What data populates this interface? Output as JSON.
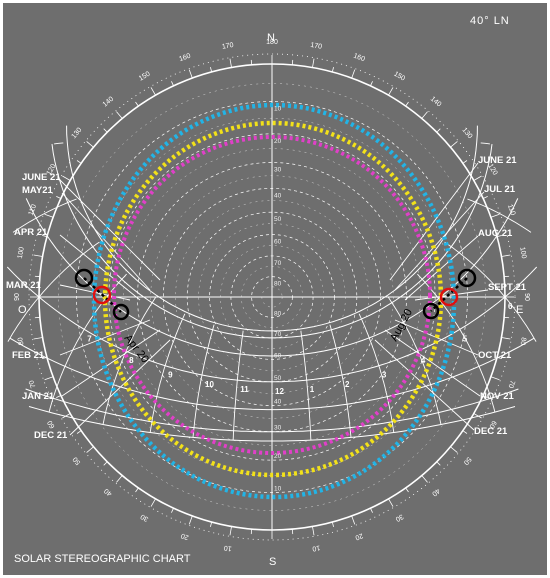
{
  "latitude_label": "40° LN",
  "title": "SOLAR STEREOGRAPHIC CHART",
  "cardinals": {
    "north": "N",
    "south": "S",
    "east": "E",
    "west": "O"
  },
  "months_left": [
    "JUNE 21",
    "MAY21",
    "APR 21",
    "MAR 21",
    "FEB 21",
    "JAN 21",
    "DEC 21"
  ],
  "months_right": [
    "JUNE 21",
    "JUL 21",
    "AUG 21",
    "SEPT 21",
    "OCT 21",
    "NOV 21",
    "DEC 21"
  ],
  "azimuth_labels": [
    "10",
    "20",
    "30",
    "40",
    "50",
    "60",
    "70",
    "80",
    "90",
    "100",
    "110",
    "120",
    "130",
    "140",
    "150",
    "160",
    "170",
    "180",
    "170",
    "160",
    "150",
    "140",
    "130",
    "120",
    "110",
    "100",
    "90",
    "80",
    "70",
    "60",
    "50",
    "40",
    "30",
    "20",
    "10"
  ],
  "altitude_labels": [
    "10",
    "20",
    "30",
    "40",
    "50",
    "60",
    "70",
    "80"
  ],
  "hour_labels": [
    "6",
    "5",
    "4",
    "3",
    "2",
    "1",
    "12",
    "11",
    "10",
    "9",
    "8",
    "7"
  ],
  "markers": {
    "left_date": "Apr 20",
    "right_date": "Aug 20"
  },
  "colors": {
    "background": "#6e6e6e",
    "lines": "#ffffff",
    "cyan_ring": "#22b4e6",
    "yellow_ring": "#f2e11a",
    "magenta_ring": "#e040c8",
    "red_marker": "#e01010",
    "black_marker": "#000000"
  }
}
